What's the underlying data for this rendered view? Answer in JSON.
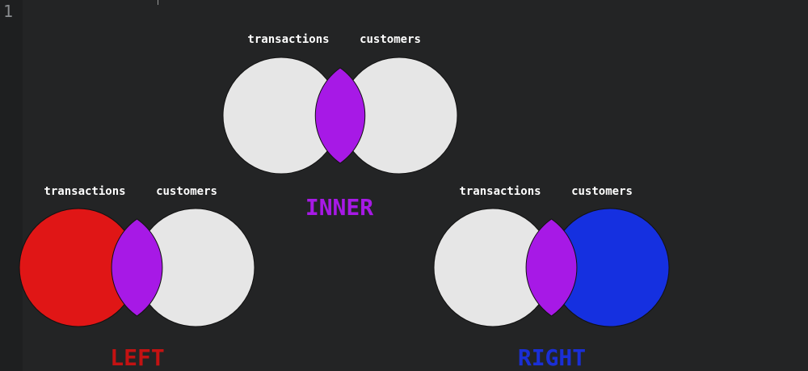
{
  "editor": {
    "line_number": "1"
  },
  "diagrams": [
    {
      "id": "inner",
      "left_label": "transactions",
      "right_label": "customers",
      "title": "INNER",
      "title_color": "#a719e6",
      "left_fill": "#e6e6e6",
      "right_fill": "#e6e6e6",
      "overlap_fill": "#a719e6"
    },
    {
      "id": "left",
      "left_label": "transactions",
      "right_label": "customers",
      "title": "LEFT",
      "title_color": "#c41212",
      "left_fill": "#e01616",
      "right_fill": "#e6e6e6",
      "overlap_fill": "#a719e6"
    },
    {
      "id": "right",
      "left_label": "transactions",
      "right_label": "customers",
      "title": "RIGHT",
      "title_color": "#1a2fd6",
      "left_fill": "#e6e6e6",
      "right_fill": "#1530e0",
      "overlap_fill": "#a719e6"
    }
  ]
}
